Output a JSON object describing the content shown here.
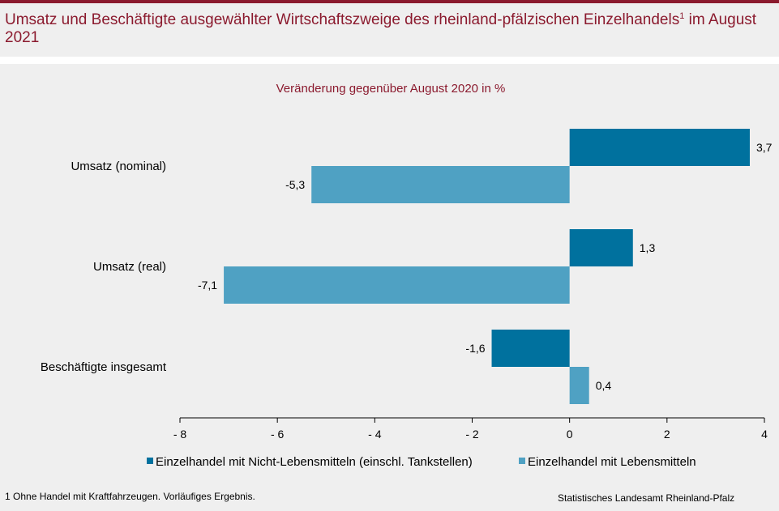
{
  "header": {
    "title": "Umsatz und Beschäftigte ausgewählter Wirtschaftszweige des rheinland-pfälzischen Einzelhandels",
    "title_footnote_mark": "1",
    "title_suffix": " im August 2021"
  },
  "chart_data": {
    "type": "bar",
    "orientation": "horizontal",
    "subtitle": "Veränderung gegenüber August 2020 in %",
    "categories": [
      "Umsatz (nominal)",
      "Umsatz (real)",
      "Beschäftigte insgesamt"
    ],
    "series": [
      {
        "name": "Einzelhandel mit Nicht-Lebensmitteln (einschl. Tankstellen)",
        "color": "#00719e",
        "values": [
          3.7,
          1.3,
          -1.6
        ],
        "labels": [
          "3,7",
          "1,3",
          "-1,6"
        ]
      },
      {
        "name": "Einzelhandel mit Lebensmitteln",
        "color": "#4fa1c3",
        "values": [
          -5.3,
          -7.1,
          0.4
        ],
        "labels": [
          "-5,3",
          "-7,1",
          "0,4"
        ]
      }
    ],
    "xlim": [
      -8,
      4
    ],
    "xticks": [
      -8,
      -6,
      -4,
      -2,
      0,
      2,
      4
    ],
    "xtick_labels": [
      "- 8",
      "- 6",
      "- 4",
      "- 2",
      "0",
      "2",
      "4"
    ],
    "grid": false,
    "legend_position": "bottom"
  },
  "footer": {
    "footnote": "1 Ohne Handel  mit Kraftfahrzeugen.  Vorläufiges  Ergebnis.",
    "source": "Statistisches Landesamt  Rheinland-Pfalz"
  }
}
